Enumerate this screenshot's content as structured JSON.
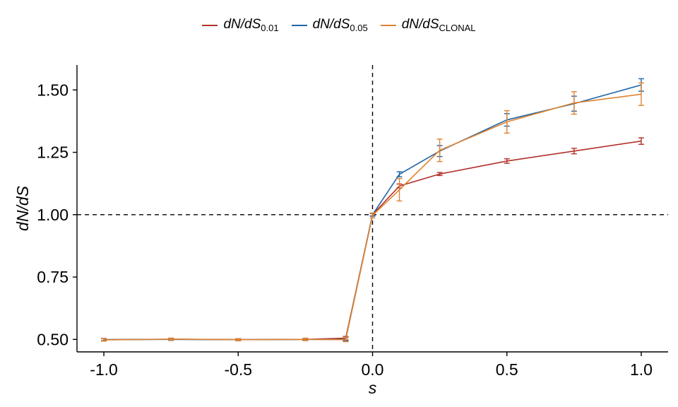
{
  "chart_data": {
    "type": "line",
    "xlabel": "s",
    "ylabel": "dN/dS",
    "xlim": [
      -1.1,
      1.1
    ],
    "ylim": [
      0.45,
      1.6
    ],
    "x_ticks": [
      -1.0,
      -0.5,
      0.0,
      0.5,
      1.0
    ],
    "x_tick_labels": [
      "-1.0",
      "-0.5",
      "0.0",
      "0.5",
      "1.0"
    ],
    "y_ticks": [
      0.5,
      0.75,
      1.0,
      1.25,
      1.5
    ],
    "y_tick_labels": [
      "0.50",
      "0.75",
      "1.00",
      "1.25",
      "1.50"
    ],
    "reference_lines": {
      "vertical_x": 0.0,
      "horizontal_y": 1.0,
      "style": "dashed"
    },
    "legend": {
      "position": "top",
      "prefix": "dN/dS"
    },
    "x": [
      -1.0,
      -0.75,
      -0.5,
      -0.25,
      -0.1,
      0.0,
      0.1,
      0.25,
      0.5,
      0.75,
      1.0
    ],
    "series": [
      {
        "name": "dN/dS 0.01",
        "subscript": "0.01",
        "color": "#b2302a",
        "values": [
          0.499,
          0.501,
          0.499,
          0.5,
          0.505,
          1.0,
          1.115,
          1.163,
          1.215,
          1.255,
          1.295
        ],
        "errors": [
          0.005,
          0.004,
          0.004,
          0.004,
          0.007,
          0.005,
          0.008,
          0.006,
          0.009,
          0.011,
          0.013
        ]
      },
      {
        "name": "dN/dS 0.05",
        "subscript": "0.05",
        "color": "#1f66a8",
        "values": [
          0.499,
          0.5,
          0.499,
          0.5,
          0.5,
          1.0,
          1.162,
          1.255,
          1.38,
          1.445,
          1.52
        ],
        "errors": [
          0.004,
          0.004,
          0.004,
          0.004,
          0.006,
          0.006,
          0.01,
          0.022,
          0.025,
          0.03,
          0.025
        ]
      },
      {
        "name": "dN/dS CLONAL",
        "subscript": "CLONAL",
        "color": "#e0822f",
        "values": [
          0.498,
          0.501,
          0.499,
          0.5,
          0.499,
          0.997,
          1.1,
          1.258,
          1.372,
          1.448,
          1.483
        ],
        "errors": [
          0.005,
          0.004,
          0.004,
          0.005,
          0.008,
          0.01,
          0.045,
          0.045,
          0.045,
          0.045,
          0.045
        ]
      }
    ]
  }
}
